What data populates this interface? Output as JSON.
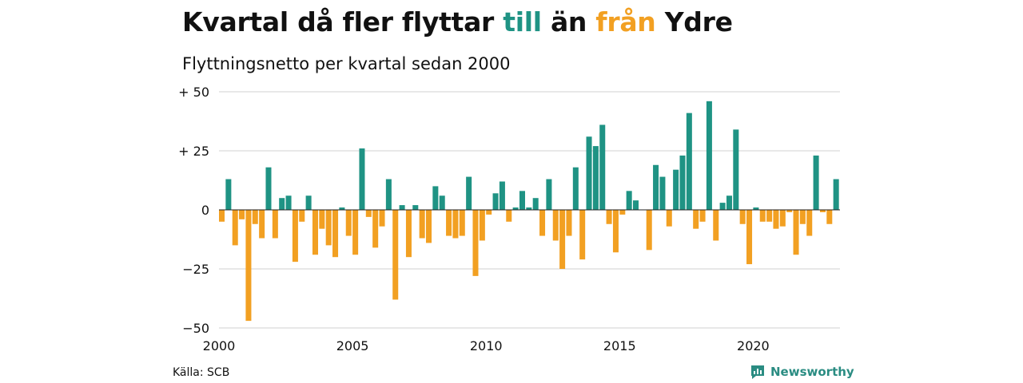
{
  "title": {
    "part1": "Kvartal då fler flyttar ",
    "till": "till",
    "part2": " än ",
    "fran": "från",
    "part3": " Ydre"
  },
  "subtitle": "Flyttningsnetto per kvartal sedan 2000",
  "source": "Källa: SCB",
  "brand": "Newsworthy",
  "colors": {
    "positive": "#1f9384",
    "negative": "#f2a022",
    "grid": "#d9d9d9",
    "brand": "#2a8c82"
  },
  "chart_data": {
    "type": "bar",
    "x_start": "2000 Q1",
    "ylim": [
      -50,
      50
    ],
    "y_ticks": [
      50,
      25,
      0,
      -25,
      -50
    ],
    "y_tick_labels": [
      "+ 50",
      "+ 25",
      "0",
      "−25",
      "−50"
    ],
    "x_tick_labels": [
      "2000",
      "2005",
      "2010",
      "2015",
      "2020"
    ],
    "values": [
      -5,
      13,
      -15,
      -4,
      -47,
      -6,
      -12,
      18,
      -12,
      5,
      6,
      -22,
      -5,
      6,
      -19,
      -8,
      -15,
      -20,
      1,
      -11,
      -19,
      26,
      -3,
      -16,
      -7,
      13,
      -38,
      2,
      -20,
      2,
      -12,
      -14,
      10,
      6,
      -11,
      -12,
      -11,
      14,
      -28,
      -13,
      -2,
      7,
      12,
      -5,
      1,
      8,
      1,
      5,
      -11,
      13,
      -13,
      -25,
      -11,
      18,
      -21,
      31,
      27,
      36,
      -6,
      -18,
      -2,
      8,
      4,
      0,
      -17,
      19,
      14,
      -7,
      17,
      23,
      41,
      -8,
      -5,
      46,
      -13,
      3,
      6,
      34,
      -6,
      -23,
      1,
      -5,
      -5,
      -8,
      -7,
      -1,
      -19,
      -6,
      -11,
      23,
      -1,
      -6,
      13
    ]
  }
}
